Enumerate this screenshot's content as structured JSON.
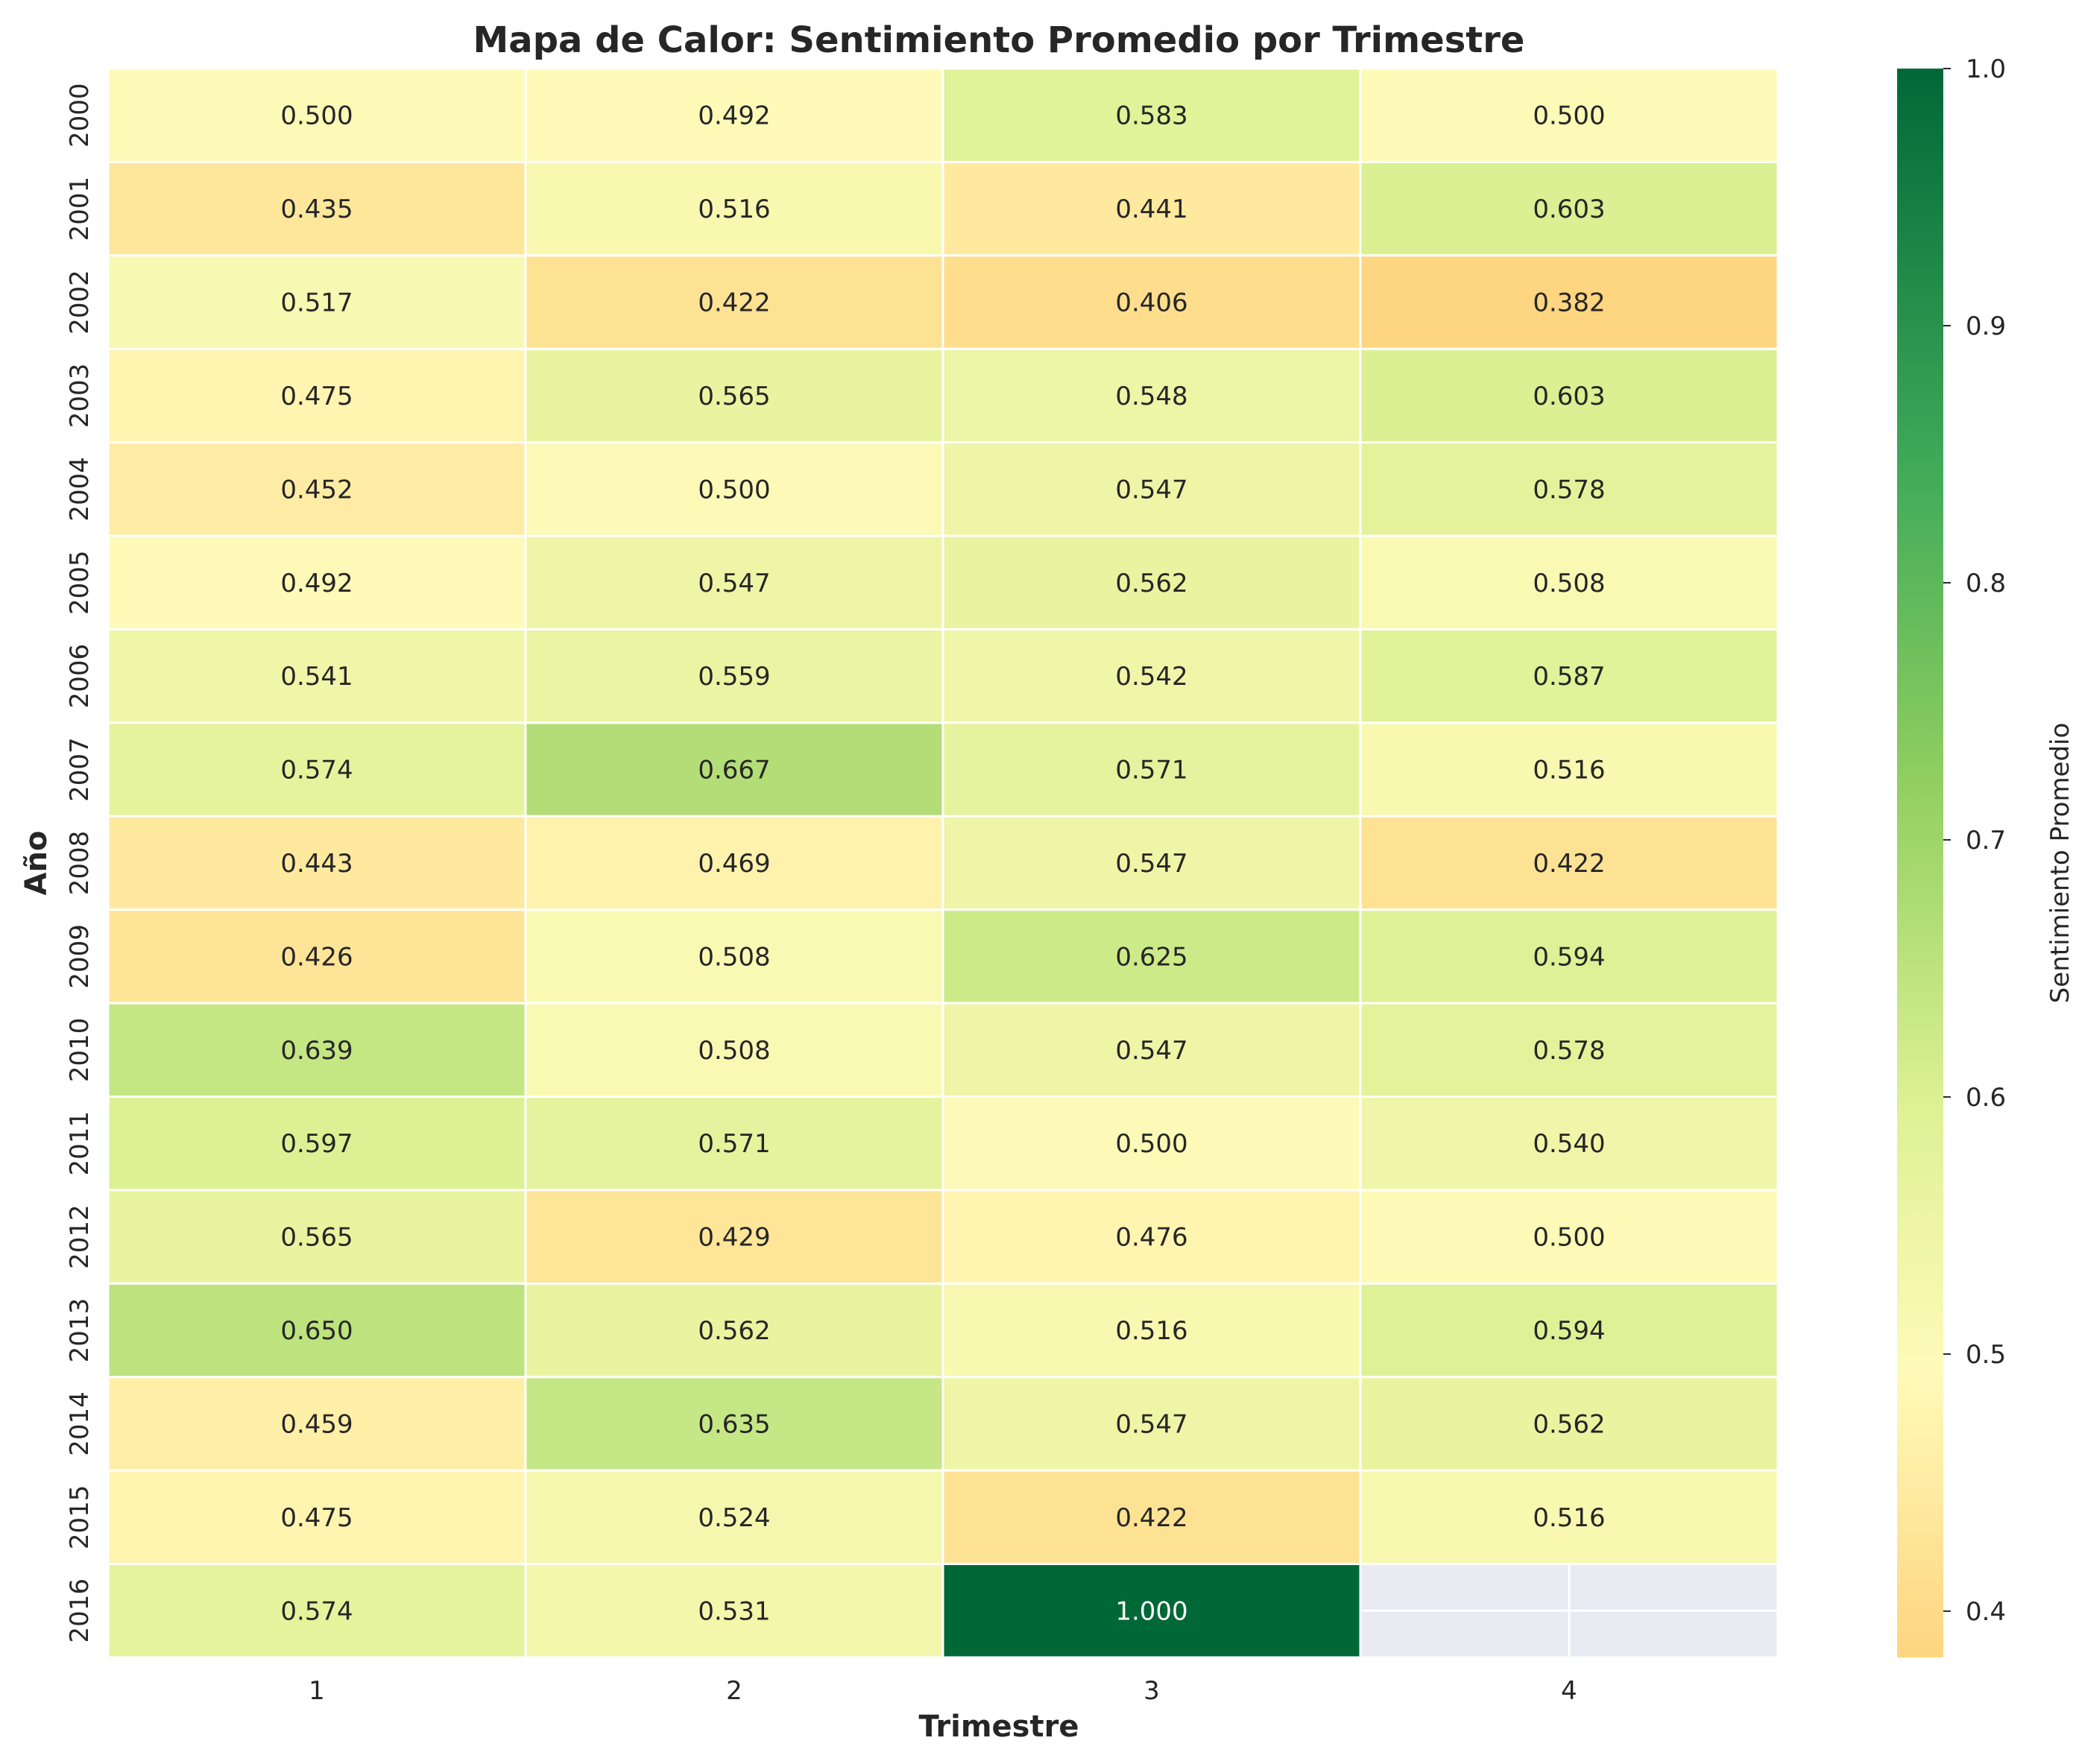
{
  "chart_data": {
    "type": "heatmap",
    "title": "Mapa de Calor: Sentimiento Promedio por Trimestre",
    "xlabel": "Trimestre",
    "ylabel": "Año",
    "x": [
      "1",
      "2",
      "3",
      "4"
    ],
    "y": [
      "2000",
      "2001",
      "2002",
      "2003",
      "2004",
      "2005",
      "2006",
      "2007",
      "2008",
      "2009",
      "2010",
      "2011",
      "2012",
      "2013",
      "2014",
      "2015",
      "2016"
    ],
    "values": [
      [
        0.5,
        0.492,
        0.583,
        0.5
      ],
      [
        0.435,
        0.516,
        0.441,
        0.603
      ],
      [
        0.517,
        0.422,
        0.406,
        0.382
      ],
      [
        0.475,
        0.565,
        0.548,
        0.603
      ],
      [
        0.452,
        0.5,
        0.547,
        0.578
      ],
      [
        0.492,
        0.547,
        0.562,
        0.508
      ],
      [
        0.541,
        0.559,
        0.542,
        0.587
      ],
      [
        0.574,
        0.667,
        0.571,
        0.516
      ],
      [
        0.443,
        0.469,
        0.547,
        0.422
      ],
      [
        0.426,
        0.508,
        0.625,
        0.594
      ],
      [
        0.639,
        0.508,
        0.547,
        0.578
      ],
      [
        0.597,
        0.571,
        0.5,
        0.54
      ],
      [
        0.565,
        0.429,
        0.476,
        0.5
      ],
      [
        0.65,
        0.562,
        0.516,
        0.594
      ],
      [
        0.459,
        0.635,
        0.547,
        0.562
      ],
      [
        0.475,
        0.524,
        0.422,
        0.516
      ],
      [
        0.574,
        0.531,
        1.0,
        null
      ]
    ],
    "value_labels": [
      [
        "0.500",
        "0.492",
        "0.583",
        "0.500"
      ],
      [
        "0.435",
        "0.516",
        "0.441",
        "0.603"
      ],
      [
        "0.517",
        "0.422",
        "0.406",
        "0.382"
      ],
      [
        "0.475",
        "0.565",
        "0.548",
        "0.603"
      ],
      [
        "0.452",
        "0.500",
        "0.547",
        "0.578"
      ],
      [
        "0.492",
        "0.547",
        "0.562",
        "0.508"
      ],
      [
        "0.541",
        "0.559",
        "0.542",
        "0.587"
      ],
      [
        "0.574",
        "0.667",
        "0.571",
        "0.516"
      ],
      [
        "0.443",
        "0.469",
        "0.547",
        "0.422"
      ],
      [
        "0.426",
        "0.508",
        "0.625",
        "0.594"
      ],
      [
        "0.639",
        "0.508",
        "0.547",
        "0.578"
      ],
      [
        "0.597",
        "0.571",
        "0.500",
        "0.540"
      ],
      [
        "0.565",
        "0.429",
        "0.476",
        "0.500"
      ],
      [
        "0.650",
        "0.562",
        "0.516",
        "0.594"
      ],
      [
        "0.459",
        "0.635",
        "0.547",
        "0.562"
      ],
      [
        "0.475",
        "0.524",
        "0.422",
        "0.516"
      ],
      [
        "0.574",
        "0.531",
        "1.000",
        ""
      ]
    ],
    "colorbar": {
      "label": "Sentimiento Promedio",
      "min": 0.382,
      "max": 1.0,
      "ticks": [
        0.4,
        0.5,
        0.6,
        0.7,
        0.8,
        0.9,
        1.0
      ],
      "tick_labels": [
        "0.4",
        "0.5",
        "0.6",
        "0.7",
        "0.8",
        "0.9",
        "1.0"
      ],
      "colormap": "RdYlGn-truncated"
    },
    "missing_color": "#eaeaf2",
    "grid": false,
    "legend": "colorbar-right"
  }
}
